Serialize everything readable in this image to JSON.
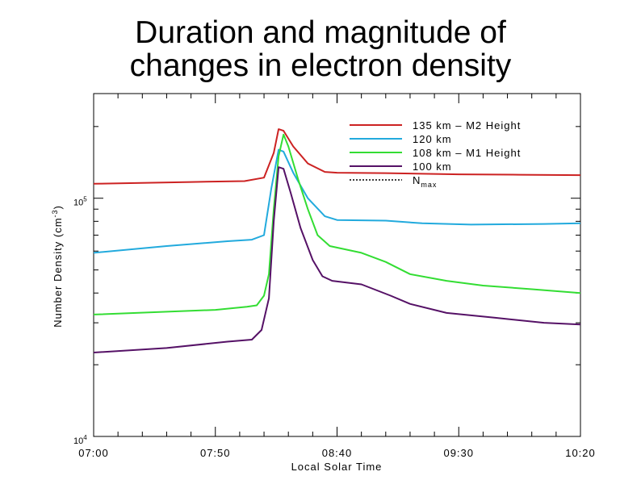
{
  "slide": {
    "title_line1": "Duration and magnitude of",
    "title_line2": "changes in electron density"
  },
  "chart_data": {
    "type": "line",
    "xlabel": "Local Solar Time",
    "ylabel": "Number Density (cm",
    "ylabel_sup": "-3",
    "ylabel_close": ")",
    "x_ticks": [
      "07:00",
      "07:50",
      "08:40",
      "09:30",
      "10:20"
    ],
    "x_tick_minutes": [
      0,
      50,
      100,
      150,
      200
    ],
    "xlim": [
      0,
      200
    ],
    "yscale": "log",
    "ylim": [
      10000,
      275000
    ],
    "y_tick_labels": [
      {
        "value": 100000,
        "base": "10",
        "exp": "5"
      },
      {
        "value": 10000,
        "base": "10",
        "exp": "4"
      }
    ],
    "legend_position": "top-right",
    "series": [
      {
        "name": "135 km  –  M2 Height",
        "color": "#cc2222",
        "points": [
          [
            0,
            115000
          ],
          [
            40,
            117000
          ],
          [
            62,
            118000
          ],
          [
            70,
            122000
          ],
          [
            74,
            155000
          ],
          [
            76,
            195000
          ],
          [
            78,
            192000
          ],
          [
            82,
            165000
          ],
          [
            88,
            140000
          ],
          [
            95,
            129000
          ],
          [
            100,
            128000
          ],
          [
            120,
            127500
          ],
          [
            150,
            126000
          ],
          [
            175,
            125500
          ],
          [
            200,
            125000
          ]
        ]
      },
      {
        "name": "120 km",
        "color": "#22aadd",
        "points": [
          [
            0,
            59000
          ],
          [
            30,
            63000
          ],
          [
            55,
            66000
          ],
          [
            65,
            67000
          ],
          [
            70,
            70000
          ],
          [
            73,
            110000
          ],
          [
            76,
            160000
          ],
          [
            78,
            157000
          ],
          [
            82,
            128000
          ],
          [
            88,
            100000
          ],
          [
            95,
            84000
          ],
          [
            100,
            81000
          ],
          [
            120,
            80500
          ],
          [
            135,
            78500
          ],
          [
            155,
            77500
          ],
          [
            185,
            78000
          ],
          [
            200,
            78500
          ]
        ]
      },
      {
        "name": "108 km  –  M1 Height",
        "color": "#33dd33",
        "points": [
          [
            0,
            32500
          ],
          [
            50,
            34000
          ],
          [
            63,
            35000
          ],
          [
            67,
            35500
          ],
          [
            70,
            39000
          ],
          [
            72,
            48000
          ],
          [
            74,
            90000
          ],
          [
            76,
            150000
          ],
          [
            78,
            185000
          ],
          [
            80,
            165000
          ],
          [
            84,
            120000
          ],
          [
            88,
            90000
          ],
          [
            92,
            70000
          ],
          [
            97,
            63000
          ],
          [
            110,
            59000
          ],
          [
            120,
            54000
          ],
          [
            130,
            48000
          ],
          [
            145,
            45000
          ],
          [
            160,
            43000
          ],
          [
            180,
            41500
          ],
          [
            200,
            40000
          ]
        ]
      },
      {
        "name": "100 km",
        "color": "#551166",
        "points": [
          [
            0,
            22500
          ],
          [
            30,
            23500
          ],
          [
            55,
            25000
          ],
          [
            65,
            25500
          ],
          [
            69,
            28000
          ],
          [
            72,
            38000
          ],
          [
            74,
            80000
          ],
          [
            76,
            135000
          ],
          [
            78,
            133000
          ],
          [
            81,
            105000
          ],
          [
            85,
            75000
          ],
          [
            90,
            55000
          ],
          [
            94,
            47000
          ],
          [
            98,
            45000
          ],
          [
            110,
            43500
          ],
          [
            122,
            39000
          ],
          [
            130,
            36000
          ],
          [
            145,
            33000
          ],
          [
            165,
            31500
          ],
          [
            185,
            30000
          ],
          [
            200,
            29500
          ]
        ]
      },
      {
        "name": "N",
        "name_sub": "max",
        "color": "#000000",
        "style": "dotted",
        "points": []
      }
    ]
  }
}
